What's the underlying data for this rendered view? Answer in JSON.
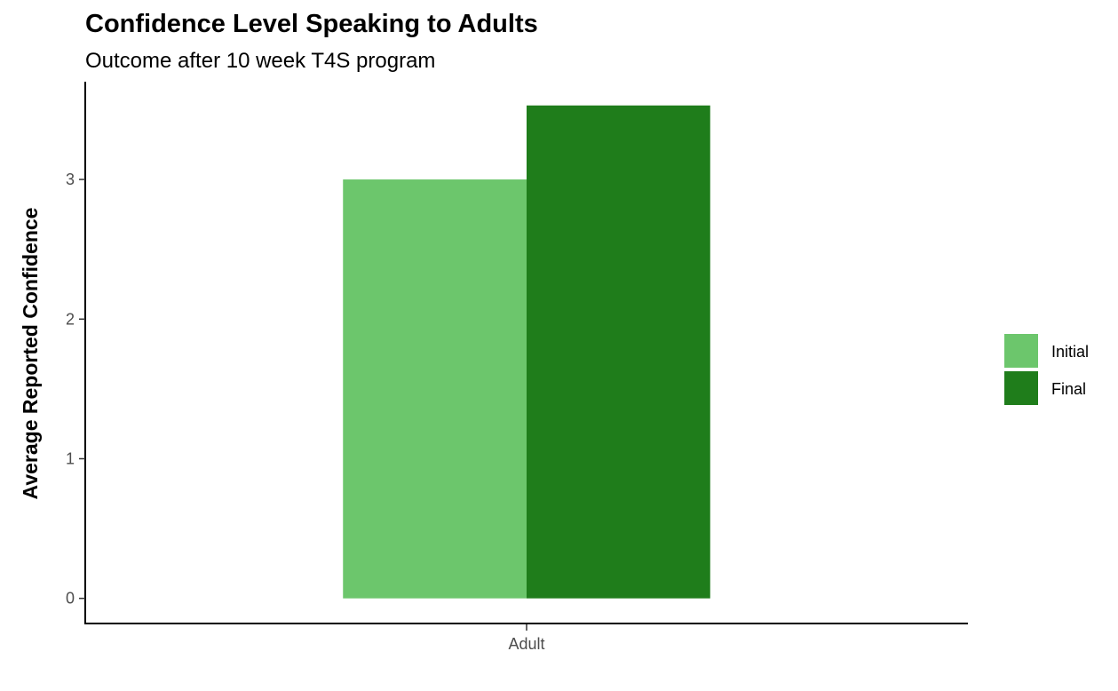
{
  "chart_data": {
    "type": "bar",
    "title": "Confidence Level Speaking to Adults",
    "subtitle": "Outcome after 10 week T4S program",
    "xlabel": "",
    "ylabel": "Average Reported Confidence",
    "categories": [
      "Adult"
    ],
    "series": [
      {
        "name": "Initial",
        "values": [
          3.0
        ],
        "color": "#6cc66c"
      },
      {
        "name": "Final",
        "values": [
          3.53
        ],
        "color": "#1f7d1b"
      }
    ],
    "yticks": [
      0,
      1,
      2,
      3
    ],
    "ylim": [
      -0.18,
      3.7
    ],
    "grid": false,
    "legend": "right"
  }
}
